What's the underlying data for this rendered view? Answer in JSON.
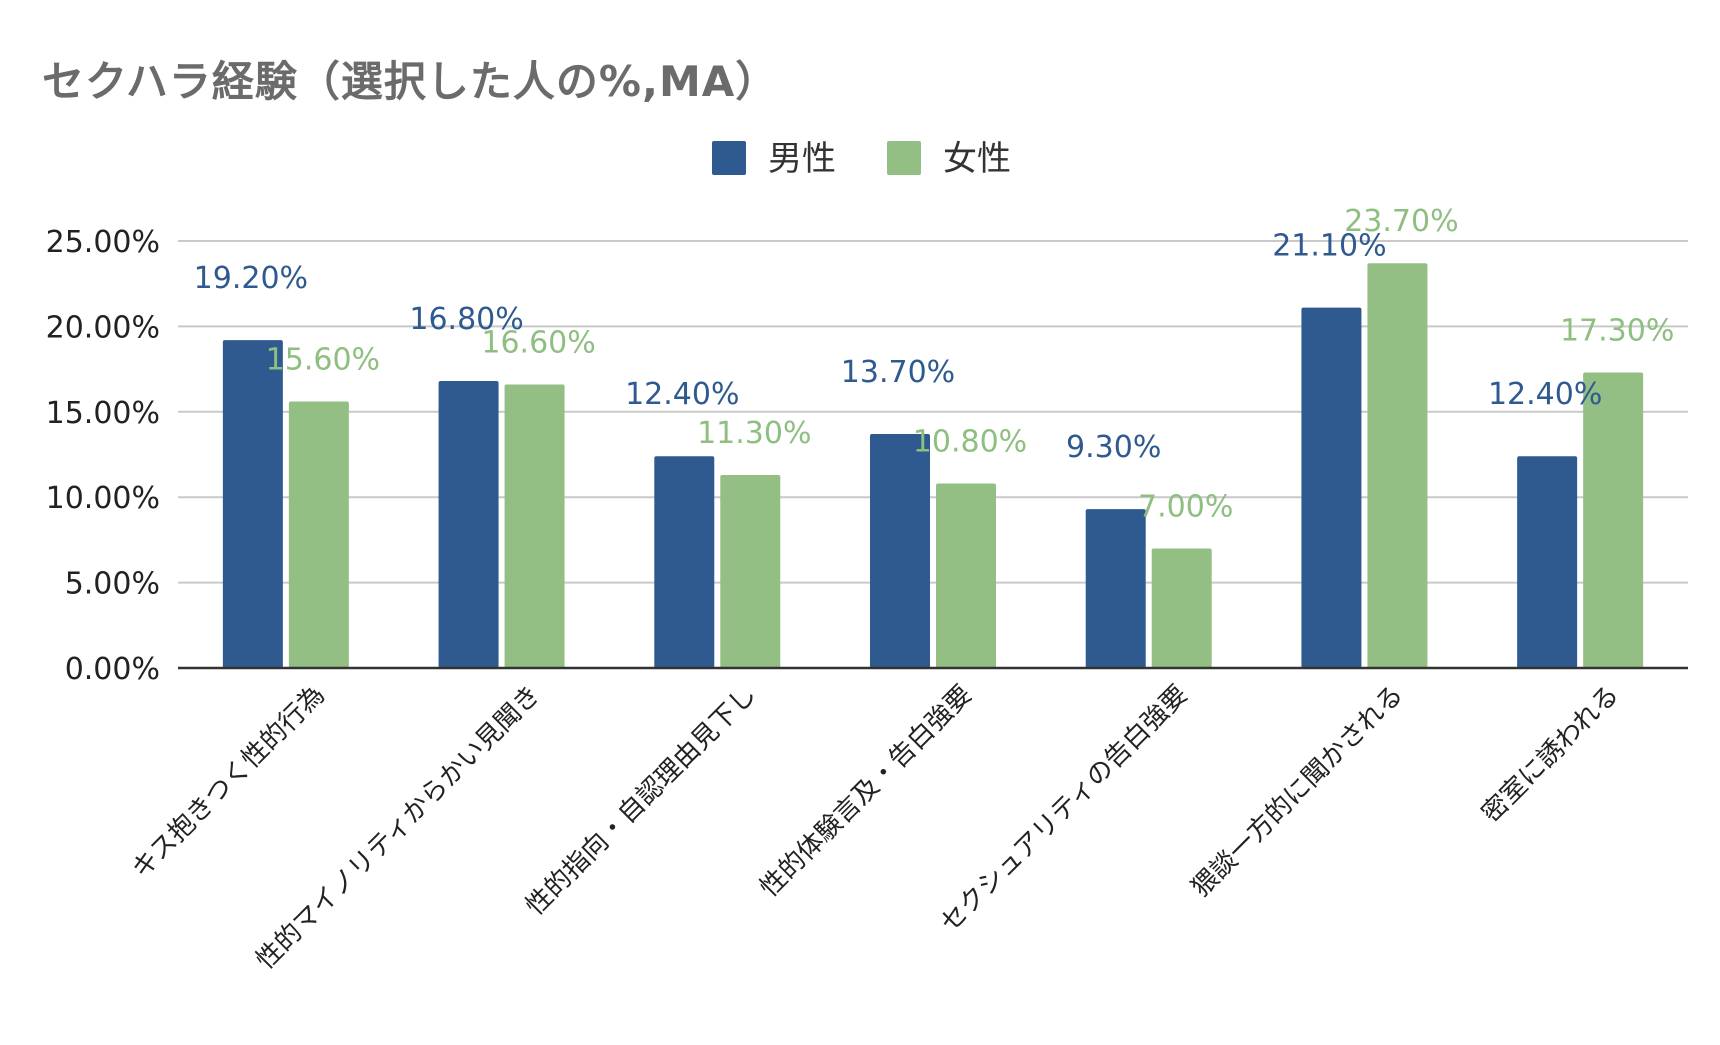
{
  "chart_data": {
    "type": "bar",
    "title": "セクハラ経験（選択した人の%,MA）",
    "categories": [
      "キス抱きつく性的行為",
      "性的マイノリティからかい見聞き",
      "性的指向・自認理由見下し",
      "性的体験言及・告白強要",
      "セクシュアリティの告白強要",
      "猥談一方的に聞かされる",
      "密室に誘われる"
    ],
    "series": [
      {
        "name": "男性",
        "color": "#2e5a8f",
        "values": [
          19.2,
          16.8,
          12.4,
          13.7,
          9.3,
          21.1,
          12.4
        ],
        "labels": [
          "19.20%",
          "16.80%",
          "12.40%",
          "13.70%",
          "9.30%",
          "21.10%",
          "12.40%"
        ]
      },
      {
        "name": "女性",
        "color": "#93bf85",
        "values": [
          15.6,
          16.6,
          11.3,
          10.8,
          7.0,
          23.7,
          17.3
        ],
        "labels": [
          "15.60%",
          "16.60%",
          "11.30%",
          "10.80%",
          "7.00%",
          "23.70%",
          "17.30%"
        ]
      }
    ],
    "y_ticks": [
      "0.00%",
      "5.00%",
      "10.00%",
      "15.00%",
      "20.00%",
      "25.00%"
    ],
    "ylim": [
      0,
      25
    ],
    "grid": true,
    "legend_position": "top-center",
    "xlabel": "",
    "ylabel": ""
  }
}
